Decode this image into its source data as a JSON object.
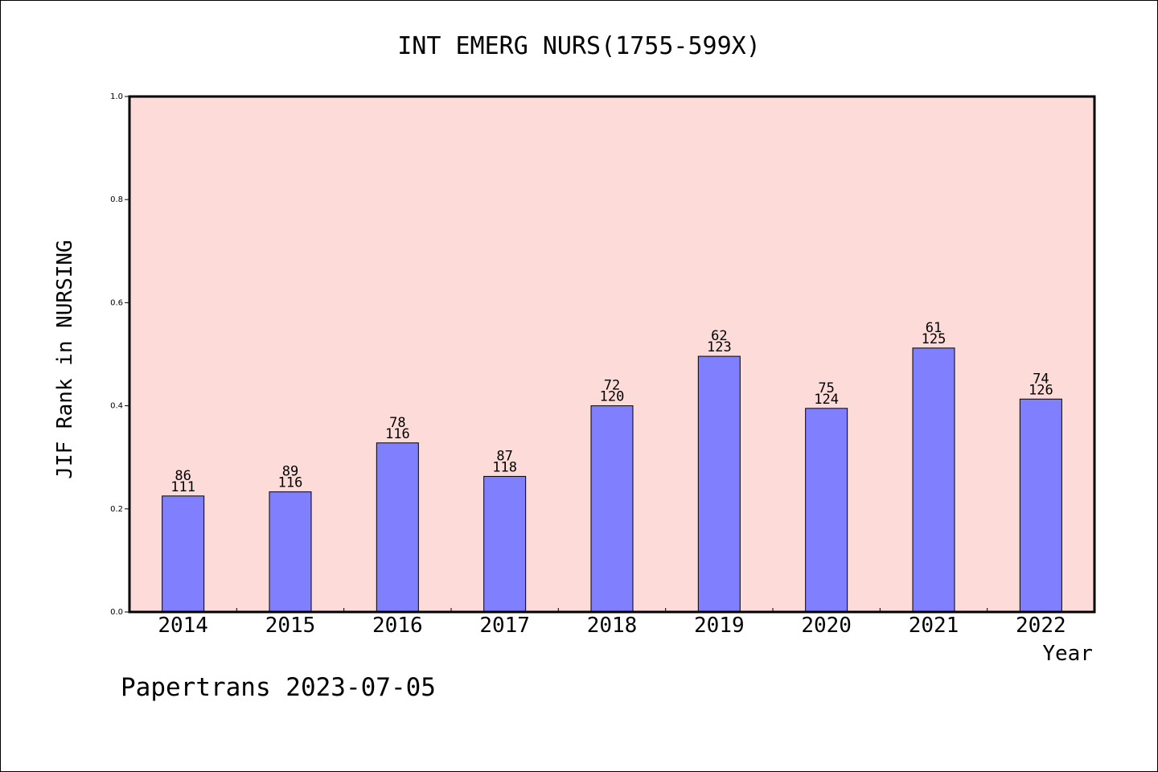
{
  "chart_data": {
    "type": "bar",
    "title": "INT EMERG NURS(1755-599X)",
    "xlabel": "Year",
    "ylabel": "JIF Rank in NURSING",
    "ylim": [
      0,
      1.0
    ],
    "yticks": [
      "0.0",
      "0.2",
      "0.4",
      "0.6",
      "0.8",
      "1.0"
    ],
    "categories": [
      "2014",
      "2015",
      "2016",
      "2017",
      "2018",
      "2019",
      "2020",
      "2021",
      "2022"
    ],
    "values": [
      0.225,
      0.233,
      0.328,
      0.263,
      0.4,
      0.496,
      0.395,
      0.512,
      0.413
    ],
    "rank": [
      "86",
      "89",
      "78",
      "87",
      "72",
      "62",
      "75",
      "61",
      "74"
    ],
    "total": [
      "111",
      "116",
      "116",
      "118",
      "120",
      "123",
      "124",
      "125",
      "126"
    ],
    "grid": false,
    "legend": "none",
    "colors": {
      "plot_background": "#fddbd8",
      "bar_fill": "#8080ff",
      "bar_stroke": "#000000"
    }
  },
  "footer": "Papertrans 2023-07-05"
}
